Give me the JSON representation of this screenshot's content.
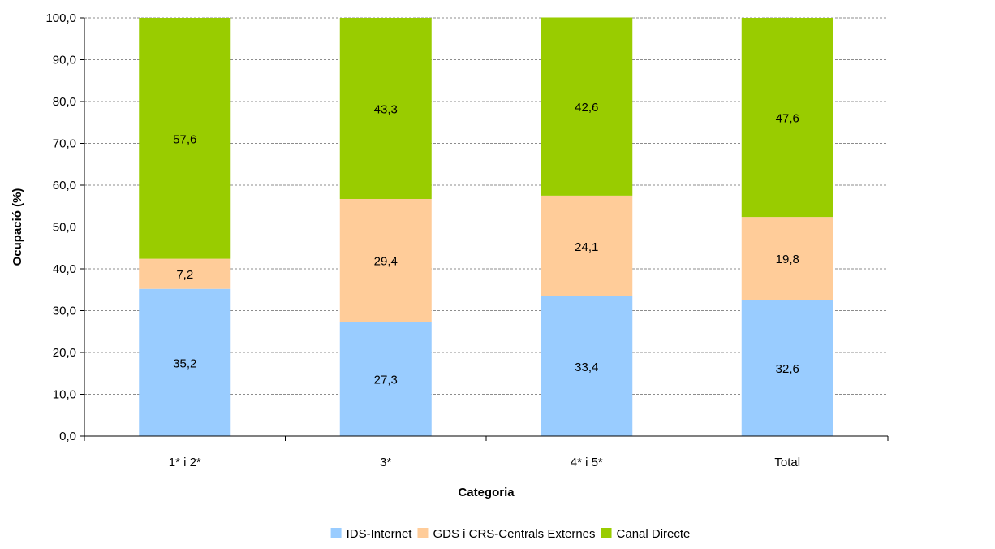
{
  "chart_data": {
    "type": "bar",
    "stacked": true,
    "categories": [
      "1* i 2*",
      "3*",
      "4* i 5*",
      "Total"
    ],
    "series": [
      {
        "name": "IDS-Internet",
        "values": [
          35.2,
          27.3,
          33.4,
          32.6
        ],
        "color": "#99ccff"
      },
      {
        "name": "GDS i CRS-Centrals Externes",
        "values": [
          7.2,
          29.4,
          24.1,
          19.8
        ],
        "color": "#ffcc99"
      },
      {
        "name": "Canal Directe",
        "values": [
          57.6,
          43.3,
          42.6,
          47.6
        ],
        "color": "#99cc00"
      }
    ],
    "data_labels": [
      [
        "35,2",
        "27,3",
        "33,4",
        "32,6"
      ],
      [
        "7,2",
        "29,4",
        "24,1",
        "19,8"
      ],
      [
        "57,6",
        "43,3",
        "42,6",
        "47,6"
      ]
    ],
    "title": "",
    "xlabel": "Categoria",
    "ylabel": "Ocupació (%)",
    "ylim": [
      0,
      100
    ],
    "yticks": [
      0,
      10,
      20,
      30,
      40,
      50,
      60,
      70,
      80,
      90,
      100
    ],
    "ytick_labels": [
      "0,0",
      "10,0",
      "20,0",
      "30,0",
      "40,0",
      "50,0",
      "60,0",
      "70,0",
      "80,0",
      "90,0",
      "100,0"
    ],
    "grid": true,
    "legend_position": "bottom"
  }
}
